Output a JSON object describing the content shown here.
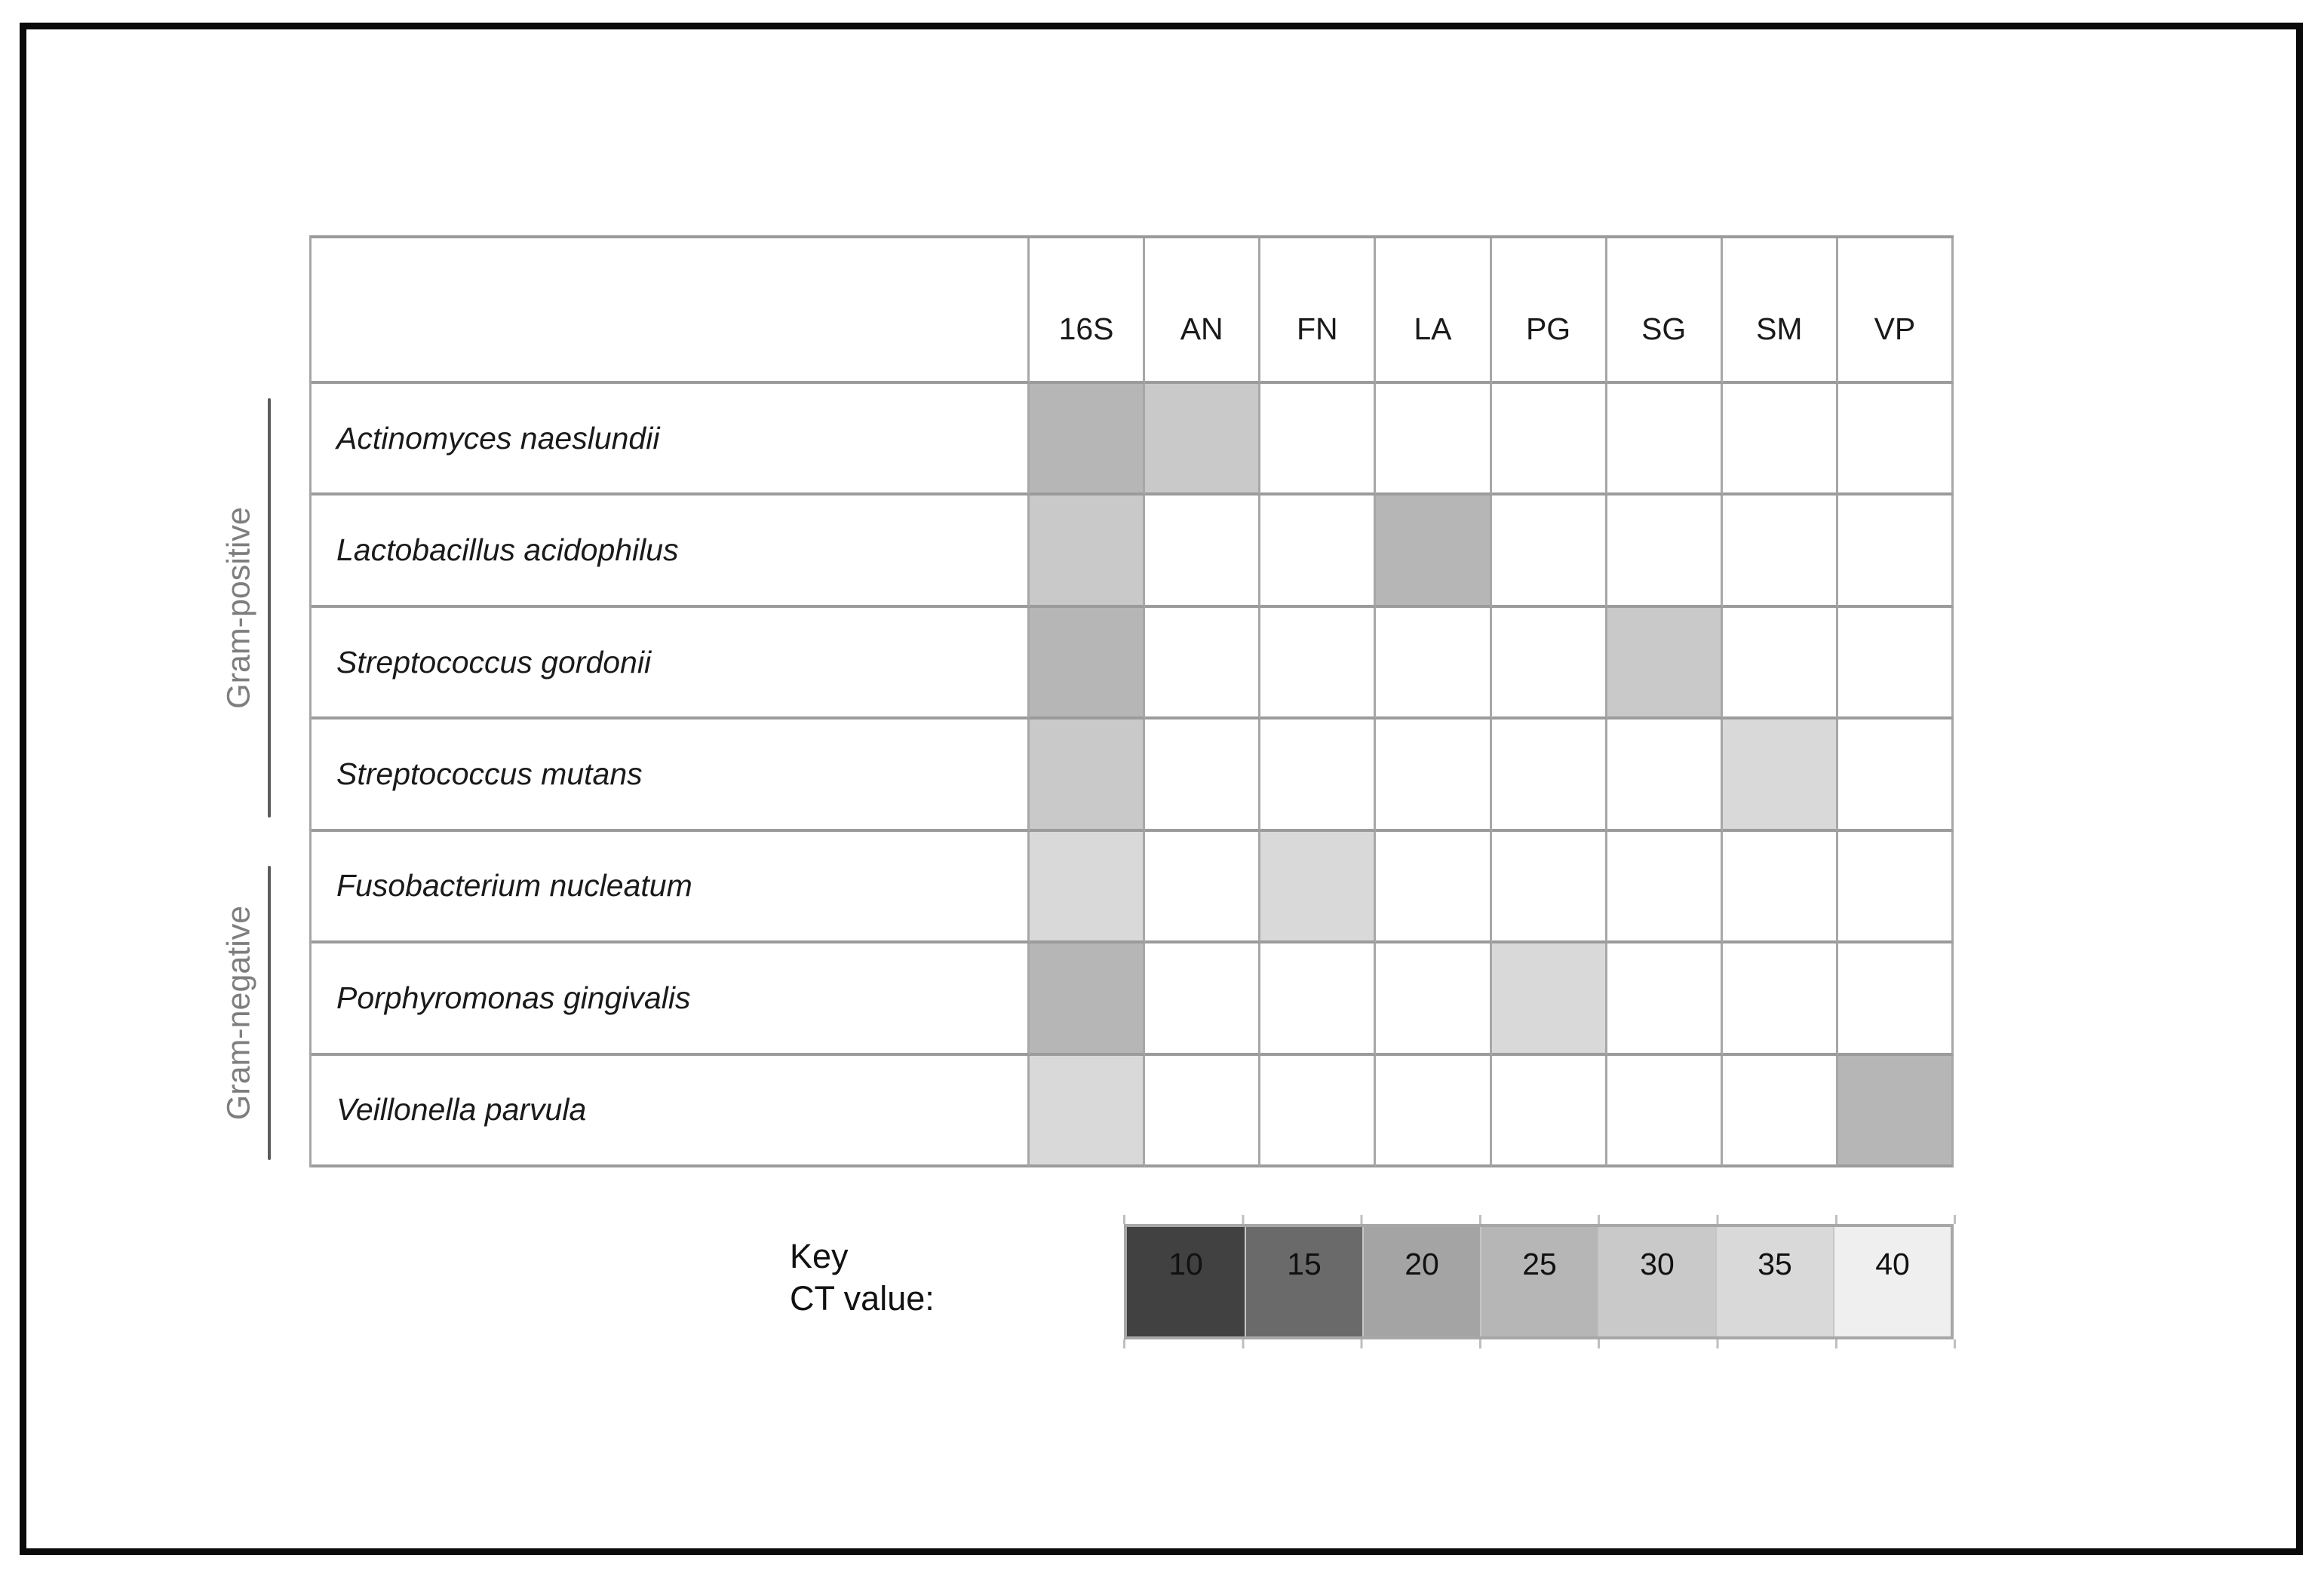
{
  "figure": {
    "background": "#ffffff",
    "frame_color": "#0a0a0a",
    "grid_line_color": "#a7a7a7"
  },
  "table": {
    "corner_label": "",
    "col_headers": [
      "16S",
      "AN",
      "FN",
      "LA",
      "PG",
      "SG",
      "SM",
      "VP"
    ],
    "rows": [
      {
        "species": "Actinomyces naeslundii",
        "group": "Gram-positive",
        "values": {
          "16S": 25,
          "AN": 30
        }
      },
      {
        "species": "Lactobacillus acidophilus",
        "group": "Gram-positive",
        "values": {
          "16S": 30,
          "LA": 25
        }
      },
      {
        "species": "Streptococcus gordonii",
        "group": "Gram-positive",
        "values": {
          "16S": 25,
          "SG": 30
        }
      },
      {
        "species": "Streptococcus mutans",
        "group": "Gram-positive",
        "values": {
          "16S": 30,
          "SM": 35
        }
      },
      {
        "species": "Fusobacterium nucleatum",
        "group": "Gram-negative",
        "values": {
          "16S": 35,
          "FN": 35
        }
      },
      {
        "species": "Porphyromonas gingivalis",
        "group": "Gram-negative",
        "values": {
          "16S": 25,
          "PG": 35
        }
      },
      {
        "species": "Veillonella parvula",
        "group": "Gram-negative",
        "values": {
          "16S": 35,
          "VP": 25
        }
      }
    ]
  },
  "groups": [
    {
      "label": "Gram-positive"
    },
    {
      "label": "Gram-negative"
    }
  ],
  "key": {
    "title": "Key",
    "subtitle": "CT value:",
    "values": [
      10,
      15,
      20,
      25,
      30,
      35,
      40
    ],
    "colors": {
      "10": "#414141",
      "15": "#6a6a6a",
      "20": "#a4a4a4",
      "25": "#b6b6b6",
      "30": "#c9c9c9",
      "35": "#d9d9d9",
      "40": "#efefef"
    }
  },
  "chart_data": {
    "type": "heatmap",
    "title": "",
    "x": [
      "16S",
      "AN",
      "FN",
      "LA",
      "PG",
      "SG",
      "SM",
      "VP"
    ],
    "y": [
      "Actinomyces naeslundii",
      "Lactobacillus acidophilus",
      "Streptococcus gordonii",
      "Streptococcus mutans",
      "Fusobacterium nucleatum",
      "Porphyromonas gingivalis",
      "Veillonella parvula"
    ],
    "y_groups": [
      {
        "label": "Gram-positive",
        "rows": [
          0,
          3
        ]
      },
      {
        "label": "Gram-negative",
        "rows": [
          4,
          6
        ]
      }
    ],
    "values": [
      [
        25,
        30,
        null,
        null,
        null,
        null,
        null,
        null
      ],
      [
        30,
        null,
        null,
        25,
        null,
        null,
        null,
        null
      ],
      [
        25,
        null,
        null,
        null,
        null,
        30,
        null,
        null
      ],
      [
        30,
        null,
        null,
        null,
        null,
        null,
        35,
        null
      ],
      [
        35,
        null,
        35,
        null,
        null,
        null,
        null,
        null
      ],
      [
        25,
        null,
        null,
        null,
        35,
        null,
        null,
        null
      ],
      [
        35,
        null,
        null,
        null,
        null,
        null,
        null,
        25
      ]
    ],
    "value_label": "CT value",
    "legend": {
      "position": "bottom",
      "title": "Key CT value:",
      "ticks": [
        10,
        15,
        20,
        25,
        30,
        35,
        40
      ],
      "colors": [
        "#414141",
        "#6a6a6a",
        "#a4a4a4",
        "#b6b6b6",
        "#c9c9c9",
        "#d9d9d9",
        "#efefef"
      ]
    }
  }
}
